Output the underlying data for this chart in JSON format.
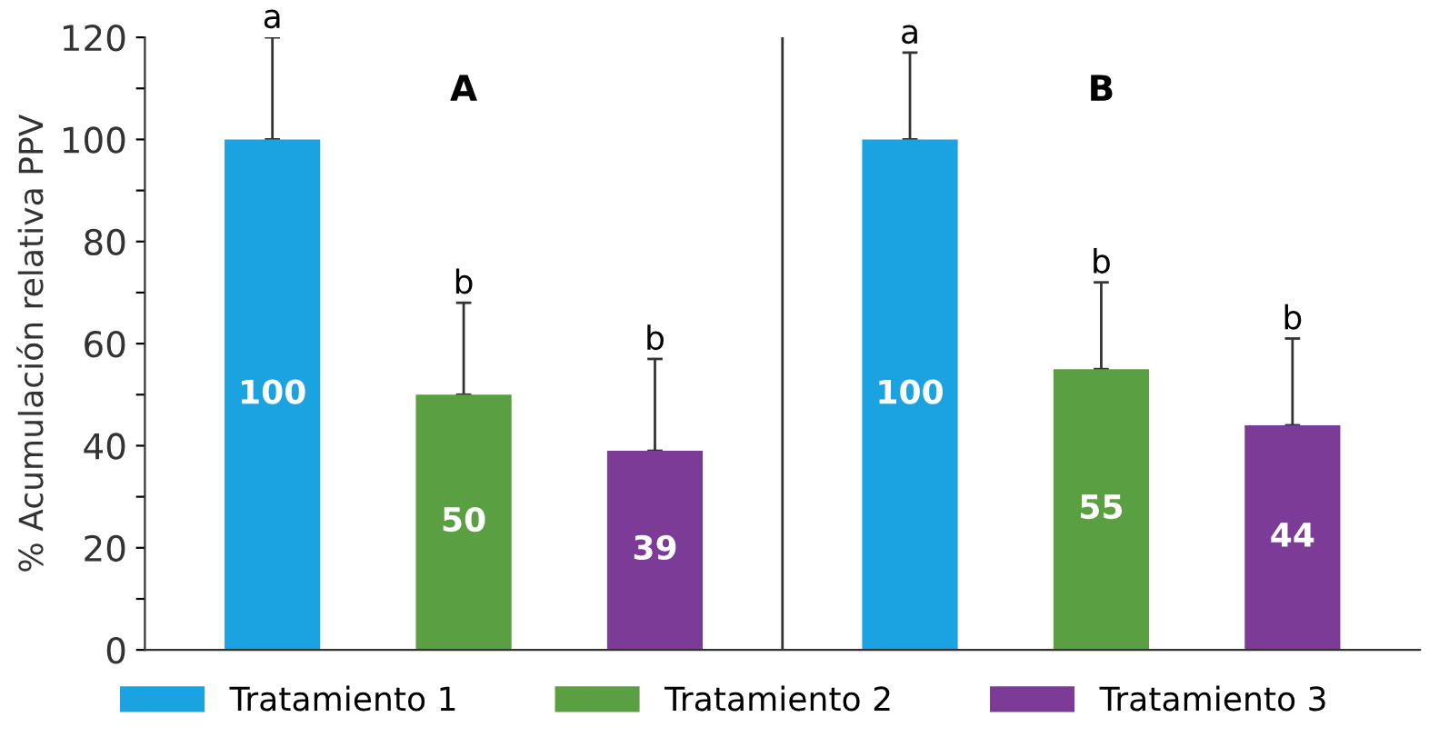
{
  "chart_data": {
    "type": "bar",
    "ylabel": "% Acumulación relativa PPV",
    "categories": [
      "A",
      "B"
    ],
    "ylim": [
      0,
      120
    ],
    "yticks": [
      0,
      {
        "value": 10,
        "label": null
      },
      20,
      {
        "value": 30,
        "label": null
      },
      40,
      {
        "value": 50,
        "label": null
      },
      60,
      {
        "value": 70,
        "label": null
      },
      80,
      {
        "value": 90,
        "label": null
      },
      100,
      {
        "value": 110,
        "label": null
      },
      120
    ],
    "series": [
      {
        "name": "Tratamiento 1",
        "color": "#1aa3e0",
        "values": [
          100,
          100
        ],
        "errors": [
          [
            100,
            120
          ],
          [
            100,
            117
          ]
        ]
      },
      {
        "name": "Tratamiento 2",
        "color": "#5aa042",
        "values": [
          50,
          55
        ],
        "errors": [
          [
            50,
            68
          ],
          [
            55,
            72
          ]
        ]
      },
      {
        "name": "Tratamiento 3",
        "color": "#7b3b96",
        "values": [
          39,
          44
        ],
        "errors": [
          [
            39,
            57
          ],
          [
            44,
            61
          ]
        ]
      }
    ],
    "annotations": [
      "a",
      "b",
      "b",
      "a",
      "b",
      "b"
    ],
    "data_labels": true,
    "legend": "bottom",
    "grid": false
  }
}
